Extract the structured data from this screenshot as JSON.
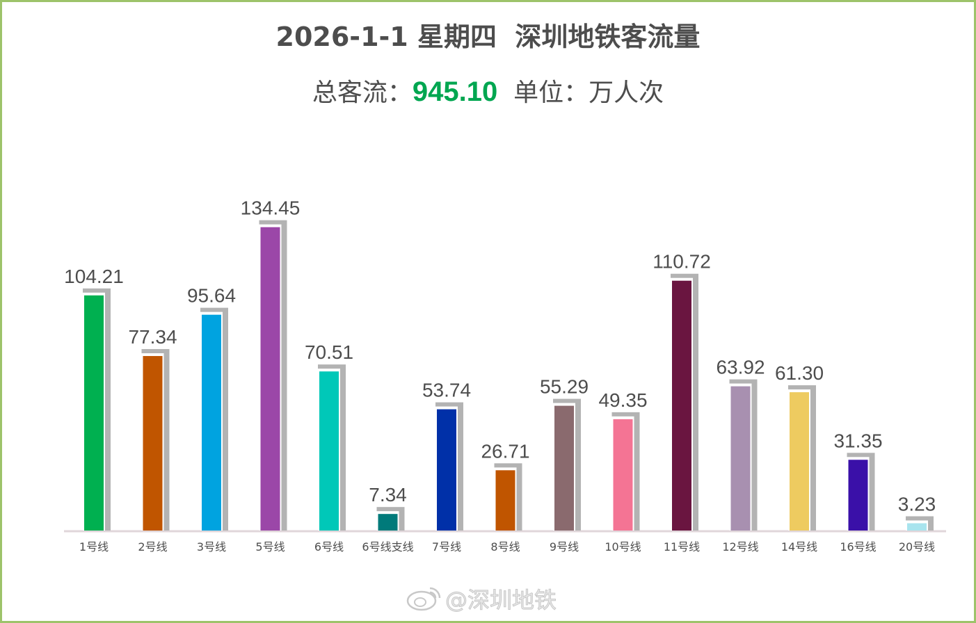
{
  "header": {
    "title": "2026-1-1 星期四  深圳地铁客流量",
    "total_label": "总客流：",
    "total_value": "945.10",
    "unit_label": "单位：万人次"
  },
  "watermark": "@深圳地铁",
  "watermark_icon": "weibo-icon",
  "chart_data": {
    "type": "bar",
    "title": "2026-1-1 星期四  深圳地铁客流量",
    "xlabel": "",
    "ylabel": "",
    "ylim": [
      0,
      150
    ],
    "grid": false,
    "legend": "none",
    "categories": [
      "1号线",
      "2号线",
      "3号线",
      "5号线",
      "6号线",
      "6号线支线",
      "7号线",
      "8号线",
      "9号线",
      "10号线",
      "11号线",
      "12号线",
      "14号线",
      "16号线",
      "20号线"
    ],
    "values": [
      104.21,
      77.34,
      95.64,
      134.45,
      70.51,
      7.34,
      53.74,
      26.71,
      55.29,
      49.35,
      110.72,
      63.92,
      61.3,
      31.35,
      3.23
    ],
    "value_labels": [
      "104.21",
      "77.34",
      "95.64",
      "134.45",
      "70.51",
      "7.34",
      "53.74",
      "26.71",
      "55.29",
      "49.35",
      "110.72",
      "63.92",
      "61.30",
      "31.35",
      "3.23"
    ],
    "colors": [
      "#00b050",
      "#c05500",
      "#00a3e0",
      "#9b47a8",
      "#00c8b8",
      "#007a7a",
      "#0030a8",
      "#c05500",
      "#8a6a6e",
      "#f47494",
      "#6a1540",
      "#a890b0",
      "#eecb60",
      "#3a10a8",
      "#a8e4ee"
    ],
    "shadow_color": "#b3b3b3",
    "baseline_color": "#e0d6da"
  }
}
